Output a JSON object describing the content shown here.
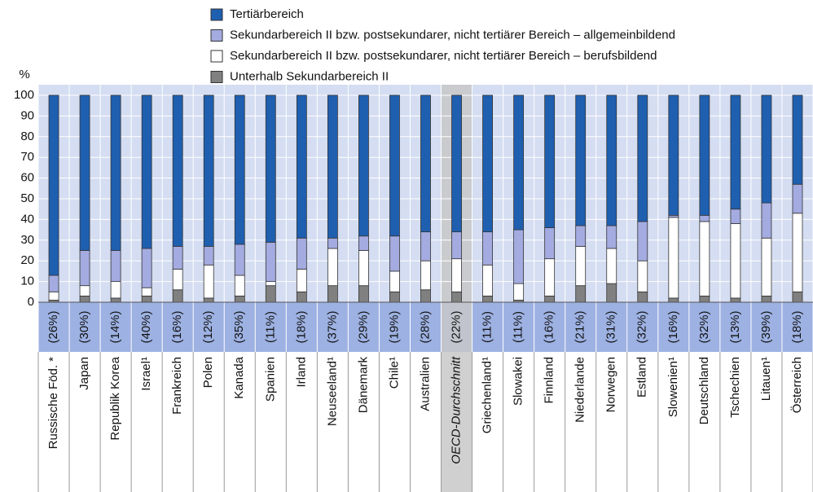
{
  "chart_data": {
    "type": "stacked_bar",
    "y_label": "%",
    "categories": [
      "Russische Föd. *",
      "Japan",
      "Republik Korea",
      "Israel¹",
      "Frankreich",
      "Polen",
      "Kanada",
      "Spanien",
      "Irland",
      "Neuseeland¹",
      "Dänemark",
      "Chile¹",
      "Australien",
      "OECD-Durchschnitt",
      "Griechenland¹",
      "Slowakei",
      "Finnland",
      "Niederlande",
      "Norwegen",
      "Estland",
      "Slowenien¹",
      "Deutschland",
      "Tschechien",
      "Litauen¹",
      "Österreich"
    ],
    "annotations": [
      "(26%)",
      "(30%)",
      "(14%)",
      "(40%)",
      "(16%)",
      "(12%)",
      "(35%)",
      "(11%)",
      "(18%)",
      "(37%)",
      "(29%)",
      "(19%)",
      "(28%)",
      "(22%)",
      "(11%)",
      "(11%)",
      "(16%)",
      "(21%)",
      "(31%)",
      "(32%)",
      "(16%)",
      "(32%)",
      "(13%)",
      "(39%)",
      "(18%)"
    ],
    "highlight_index": 13,
    "series": [
      {
        "name": "Unterhalb Sekundarbereich II",
        "color": "#808080",
        "values": [
          1,
          3,
          2,
          3,
          6,
          2,
          3,
          8,
          5,
          8,
          8,
          5,
          6,
          5,
          3,
          1,
          3,
          8,
          9,
          5,
          2,
          3,
          2,
          3,
          5
        ]
      },
      {
        "name": "Sekundarbereich II bzw. postsekundarer, nicht tertiärer Bereich – berufsbildend",
        "color": "#ffffff",
        "values": [
          4,
          5,
          8,
          4,
          10,
          16,
          10,
          2,
          11,
          18,
          17,
          10,
          14,
          16,
          15,
          8,
          18,
          19,
          17,
          15,
          39,
          36,
          36,
          28,
          38
        ]
      },
      {
        "name": "Sekundarbereich II bzw. postsekundarer, nicht tertiärer Bereich – allgemeinbildend",
        "color": "#a3abe0",
        "values": [
          8,
          17,
          15,
          19,
          11,
          9,
          15,
          19,
          15,
          5,
          7,
          17,
          14,
          13,
          16,
          26,
          15,
          10,
          11,
          19,
          1,
          3,
          7,
          17,
          14
        ]
      },
      {
        "name": "Tertiärbereich",
        "color": "#1f5fb0",
        "values": [
          87,
          75,
          75,
          74,
          73,
          73,
          72,
          71,
          69,
          69,
          68,
          68,
          66,
          66,
          66,
          65,
          64,
          63,
          63,
          61,
          58,
          58,
          55,
          52,
          43
        ]
      }
    ],
    "ylim": [
      0,
      100
    ],
    "yticks": [
      0,
      10,
      20,
      30,
      40,
      50,
      60,
      70,
      80,
      90,
      100
    ],
    "grid": true
  }
}
